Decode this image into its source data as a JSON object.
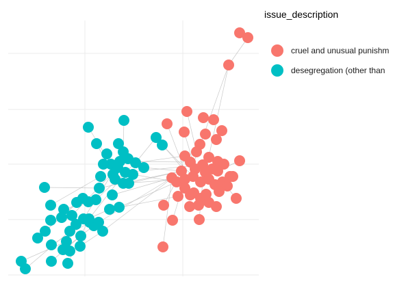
{
  "chart_data": {
    "type": "scatter",
    "subtype": "network-graph",
    "title": "",
    "xlabel": "",
    "ylabel": "",
    "grid": true,
    "axes_visible": false,
    "legend": {
      "title": "issue_description",
      "placement": "right",
      "entries": [
        {
          "label": "cruel and unusual punishm",
          "color": "#F8766D"
        },
        {
          "label": "desegregation (other than",
          "color": "#00BFC4"
        }
      ]
    },
    "edge_color": "#bbbbbb",
    "groups": [
      {
        "name": "cruel and unusual punishm",
        "color": "#F8766D",
        "points": [
          [
            350,
            48
          ],
          [
            362,
            55
          ],
          [
            334,
            95
          ],
          [
            273,
            163
          ],
          [
            297,
            172
          ],
          [
            312,
            175
          ],
          [
            244,
            181
          ],
          [
            269,
            193
          ],
          [
            324,
            191
          ],
          [
            300,
            196
          ],
          [
            316,
            204
          ],
          [
            292,
            211
          ],
          [
            270,
            228
          ],
          [
            287,
            222
          ],
          [
            305,
            230
          ],
          [
            318,
            236
          ],
          [
            327,
            240
          ],
          [
            278,
            237
          ],
          [
            296,
            241
          ],
          [
            285,
            247
          ],
          [
            300,
            252
          ],
          [
            310,
            247
          ],
          [
            265,
            250
          ],
          [
            251,
            260
          ],
          [
            258,
            266
          ],
          [
            270,
            262
          ],
          [
            282,
            258
          ],
          [
            293,
            266
          ],
          [
            305,
            262
          ],
          [
            314,
            270
          ],
          [
            325,
            266
          ],
          [
            336,
            258
          ],
          [
            350,
            235
          ],
          [
            340,
            258
          ],
          [
            320,
            280
          ],
          [
            283,
            282
          ],
          [
            270,
            275
          ],
          [
            260,
            287
          ],
          [
            293,
            290
          ],
          [
            305,
            296
          ],
          [
            316,
            302
          ],
          [
            277,
            302
          ],
          [
            301,
            284
          ],
          [
            239,
            300
          ],
          [
            252,
            322
          ],
          [
            291,
            321
          ],
          [
            345,
            290
          ],
          [
            238,
            361
          ],
          [
            318,
            250
          ],
          [
            332,
            272
          ],
          [
            278,
            285
          ],
          [
            290,
            300
          ]
        ]
      },
      {
        "name": "desegregation (other than",
        "color": "#00BFC4",
        "points": [
          [
            181,
            176
          ],
          [
            129,
            186
          ],
          [
            141,
            210
          ],
          [
            173,
            210
          ],
          [
            228,
            201
          ],
          [
            237,
            212
          ],
          [
            180,
            222
          ],
          [
            156,
            225
          ],
          [
            162,
            240
          ],
          [
            175,
            236
          ],
          [
            187,
            232
          ],
          [
            172,
            245
          ],
          [
            198,
            238
          ],
          [
            210,
            245
          ],
          [
            165,
            255
          ],
          [
            183,
            252
          ],
          [
            194,
            255
          ],
          [
            151,
            240
          ],
          [
            180,
            268
          ],
          [
            168,
            262
          ],
          [
            188,
            268
          ],
          [
            147,
            258
          ],
          [
            145,
            275
          ],
          [
            140,
            292
          ],
          [
            121,
            290
          ],
          [
            129,
            295
          ],
          [
            112,
            296
          ],
          [
            164,
            285
          ],
          [
            174,
            303
          ],
          [
            160,
            306
          ],
          [
            65,
            274
          ],
          [
            74,
            300
          ],
          [
            93,
            306
          ],
          [
            90,
            318
          ],
          [
            74,
            322
          ],
          [
            105,
            315
          ],
          [
            111,
            328
          ],
          [
            122,
            320
          ],
          [
            131,
            325
          ],
          [
            102,
            338
          ],
          [
            150,
            338
          ],
          [
            118,
            345
          ],
          [
            137,
            330
          ],
          [
            66,
            338
          ],
          [
            55,
            348
          ],
          [
            97,
            353
          ],
          [
            75,
            358
          ],
          [
            117,
            360
          ],
          [
            92,
            365
          ],
          [
            102,
            367
          ],
          [
            75,
            382
          ],
          [
            99,
            385
          ],
          [
            31,
            382
          ],
          [
            37,
            393
          ],
          [
            130,
            320
          ],
          [
            144,
            325
          ]
        ]
      }
    ],
    "edges": [
      [
        334,
        95,
        283,
        238
      ],
      [
        334,
        95,
        300,
        252
      ],
      [
        269,
        193,
        285,
        247
      ],
      [
        244,
        181,
        270,
        250
      ],
      [
        273,
        163,
        287,
        222
      ],
      [
        239,
        300,
        265,
        250
      ],
      [
        252,
        322,
        270,
        262
      ],
      [
        238,
        361,
        251,
        260
      ],
      [
        291,
        321,
        296,
        266
      ],
      [
        345,
        290,
        325,
        266
      ],
      [
        350,
        235,
        318,
        250
      ],
      [
        210,
        245,
        265,
        250
      ],
      [
        198,
        238,
        270,
        228
      ],
      [
        228,
        201,
        270,
        250
      ],
      [
        237,
        212,
        282,
        258
      ],
      [
        194,
        255,
        258,
        266
      ],
      [
        188,
        268,
        265,
        250
      ],
      [
        180,
        268,
        270,
        262
      ],
      [
        175,
        236,
        278,
        237
      ],
      [
        183,
        252,
        296,
        241
      ],
      [
        174,
        303,
        258,
        266
      ],
      [
        164,
        285,
        251,
        260
      ],
      [
        160,
        306,
        260,
        287
      ],
      [
        145,
        275,
        265,
        250
      ],
      [
        150,
        338,
        252,
        260
      ],
      [
        144,
        325,
        251,
        260
      ],
      [
        65,
        274,
        145,
        275
      ],
      [
        74,
        300,
        147,
        258
      ],
      [
        93,
        306,
        140,
        292
      ],
      [
        37,
        393,
        102,
        338
      ],
      [
        31,
        382,
        97,
        353
      ],
      [
        75,
        382,
        118,
        345
      ],
      [
        99,
        385,
        130,
        320
      ],
      [
        66,
        338,
        121,
        290
      ],
      [
        55,
        348,
        112,
        296
      ],
      [
        117,
        360,
        150,
        338
      ],
      [
        129,
        186,
        162,
        240
      ],
      [
        181,
        176,
        180,
        222
      ],
      [
        141,
        210,
        165,
        255
      ],
      [
        228,
        201,
        198,
        238
      ],
      [
        105,
        315,
        172,
        245
      ],
      [
        130,
        320,
        183,
        252
      ],
      [
        122,
        320,
        175,
        236
      ],
      [
        111,
        328,
        160,
        306
      ],
      [
        140,
        292,
        198,
        238
      ],
      [
        92,
        365,
        137,
        330
      ],
      [
        75,
        358,
        131,
        325
      ],
      [
        334,
        95,
        362,
        55
      ],
      [
        350,
        48,
        362,
        55
      ]
    ]
  }
}
